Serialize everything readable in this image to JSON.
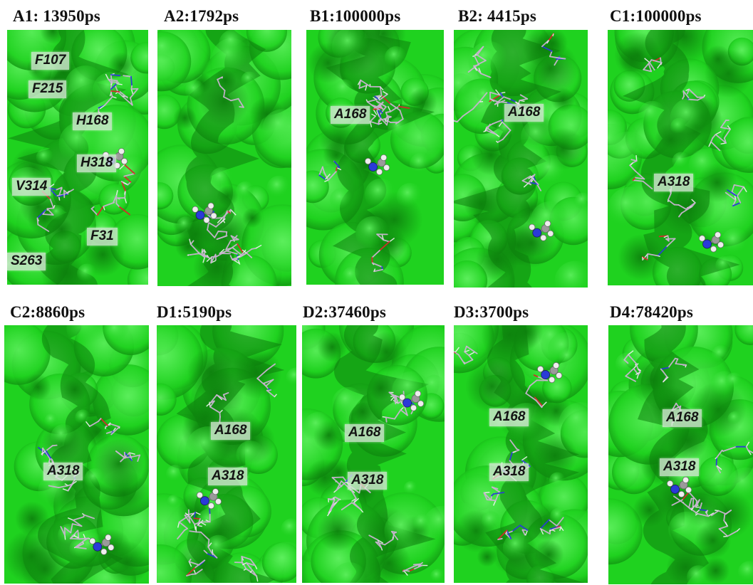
{
  "panels": [
    {
      "title": "A1: 13950ps",
      "labels": [
        "F107",
        "F215",
        "H168",
        "H318",
        "V314",
        "F31",
        "S263"
      ]
    },
    {
      "title": "A2:1792ps",
      "labels": []
    },
    {
      "title": "B1:100000ps",
      "labels": [
        "A168"
      ]
    },
    {
      "title": "B2: 4415ps",
      "labels": [
        "A168"
      ]
    },
    {
      "title": "C1:100000ps",
      "labels": [
        "A318"
      ]
    },
    {
      "title": "C2:8860ps",
      "labels": [
        "A318"
      ]
    },
    {
      "title": "D1:5190ps",
      "labels": [
        "A168",
        "A318"
      ]
    },
    {
      "title": "D2:37460ps",
      "labels": [
        "A168",
        "A318"
      ]
    },
    {
      "title": "D3:3700ps",
      "labels": [
        "A168",
        "A318"
      ]
    },
    {
      "title": "D4:78420ps",
      "labels": [
        "A168",
        "A318"
      ]
    }
  ],
  "colors": {
    "surface": "#1fd21f",
    "surface_dark": "#0c7f0c",
    "surface_light": "#5ff05f",
    "stick_carbon": "#c8b4cf",
    "stick_nitrogen": "#2a3ad8",
    "stick_oxygen": "#d8282a",
    "ligand_hydrogen": "#eeeeee"
  }
}
